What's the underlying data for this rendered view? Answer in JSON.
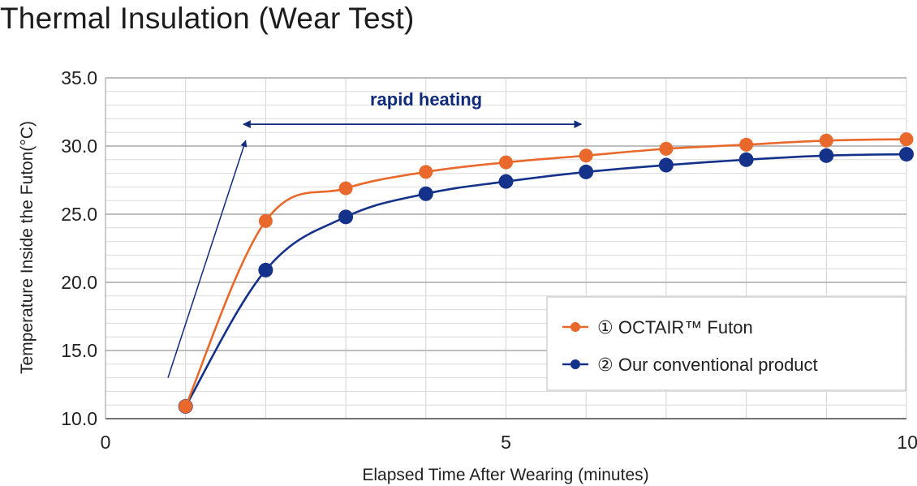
{
  "title": "Thermal Insulation (Wear Test)",
  "chart_data": {
    "type": "line",
    "title": "Thermal Insulation (Wear Test)",
    "xlabel": "Elapsed Time After Wearing (minutes)",
    "ylabel": "Temperature Inside the Futon(°C)",
    "xlim": [
      0,
      10
    ],
    "ylim": [
      10,
      35
    ],
    "x_ticks": [
      "0",
      "5",
      "10"
    ],
    "y_ticks": [
      "10.0",
      "15.0",
      "20.0",
      "25.0",
      "30.0",
      "35.0"
    ],
    "grid": true,
    "legend_position": "bottom-right",
    "series": [
      {
        "name": "① OCTAIR™ Futon",
        "color": "#e8692b",
        "x": [
          1,
          2,
          3,
          4,
          5,
          6,
          7,
          8,
          9,
          10
        ],
        "values": [
          10.9,
          24.5,
          26.9,
          28.1,
          28.8,
          29.3,
          29.8,
          30.1,
          30.4,
          30.5
        ]
      },
      {
        "name": "② Our conventional product",
        "color": "#14328a",
        "x": [
          1,
          2,
          3,
          4,
          5,
          6,
          7,
          8,
          9,
          10
        ],
        "values": [
          10.9,
          20.9,
          24.8,
          26.5,
          27.4,
          28.1,
          28.6,
          29.0,
          29.3,
          29.4
        ]
      }
    ],
    "annotations": [
      {
        "text": "rapid heating",
        "x_from": 1.6,
        "x_to": 6.0,
        "y": 31.6
      }
    ]
  }
}
